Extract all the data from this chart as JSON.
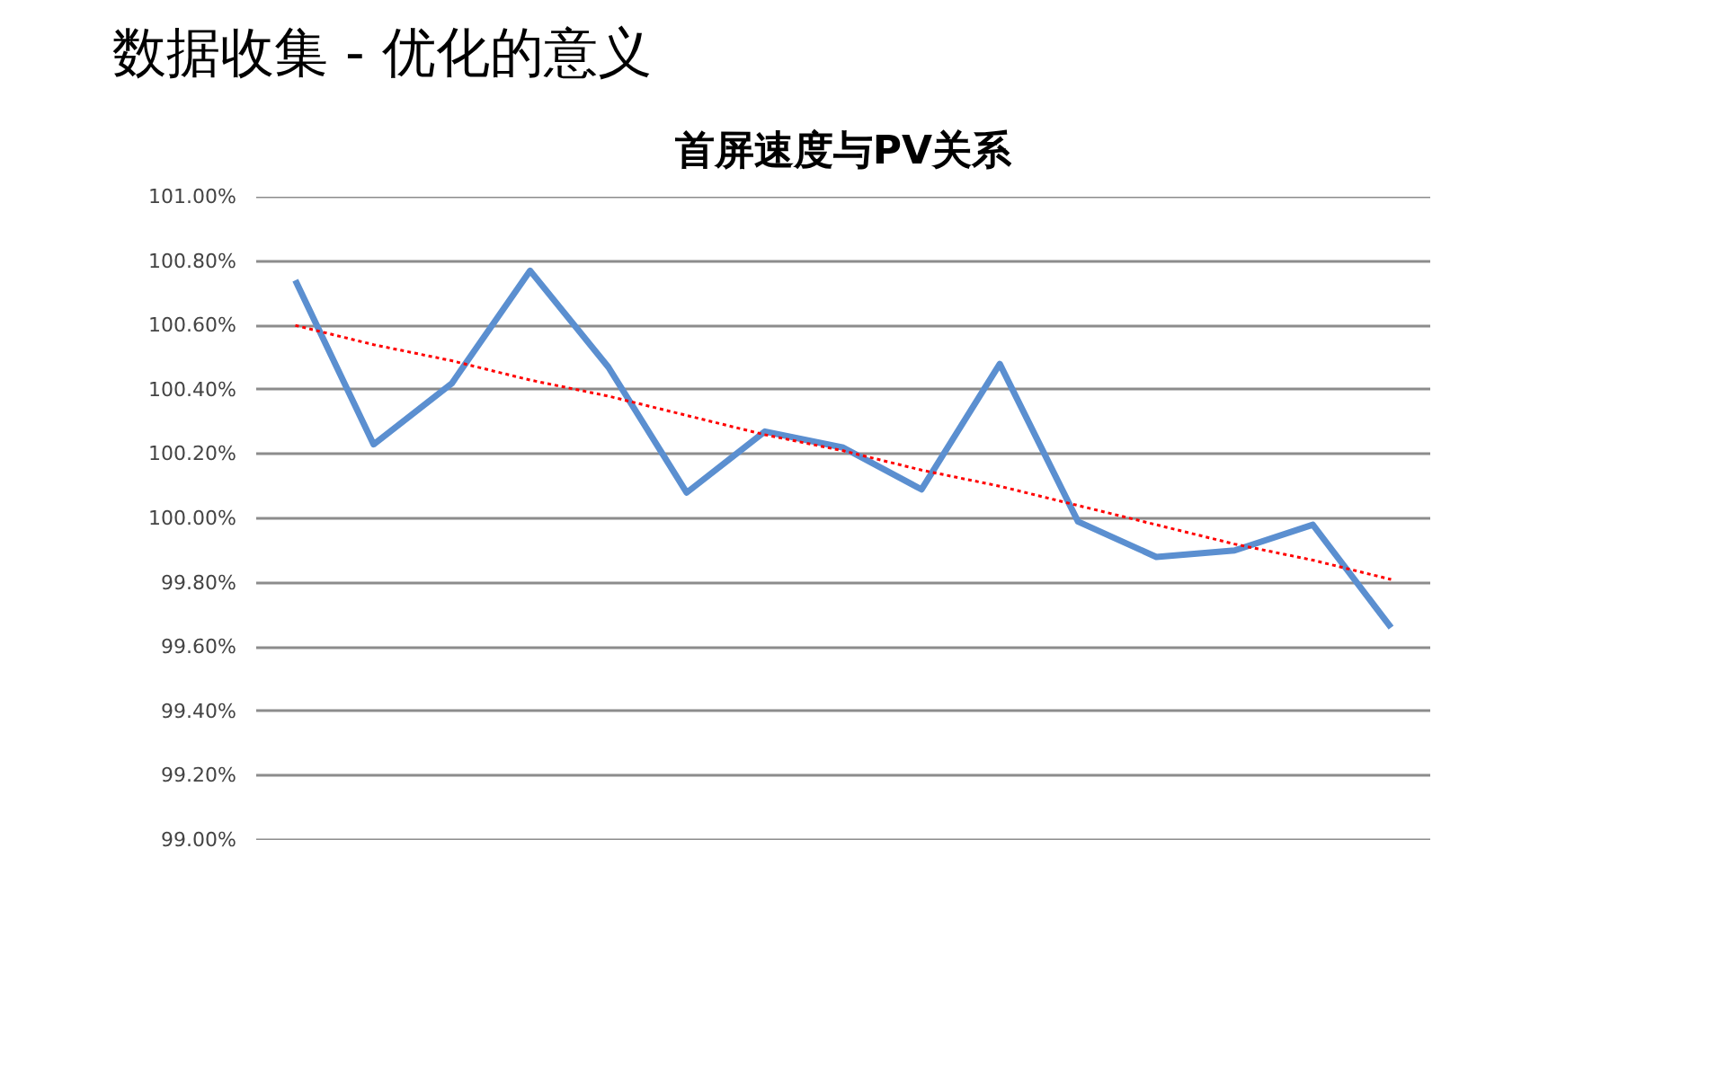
{
  "chart_data": {
    "type": "line",
    "title": "数据收集 - 优化的意义",
    "subtitle": "首屏速度与PV关系",
    "categories": [
      null,
      null,
      null,
      null,
      null,
      null,
      null,
      null,
      null,
      null,
      null,
      null,
      null,
      null,
      null
    ],
    "series": [
      {
        "color": "#5b8fd0",
        "values": [
          100.74,
          100.23,
          100.42,
          100.77,
          100.47,
          100.08,
          100.27,
          100.22,
          100.09,
          100.48,
          99.99,
          99.88,
          99.9,
          99.98,
          99.66
        ]
      },
      {
        "color": "#ff0000",
        "line_style": "dotted",
        "values": [
          100.6,
          100.54,
          100.49,
          100.43,
          100.38,
          100.32,
          100.26,
          100.21,
          100.15,
          100.1,
          100.04,
          99.98,
          99.92,
          99.87,
          99.81
        ]
      }
    ],
    "ylim": [
      99.0,
      101.0
    ],
    "yticks": [
      {
        "value": 99.0,
        "label": "99.00%"
      },
      {
        "value": 99.2,
        "label": "99.20%"
      },
      {
        "value": 99.4,
        "label": "99.40%"
      },
      {
        "value": 99.6,
        "label": "99.60%"
      },
      {
        "value": 99.8,
        "label": "99.80%"
      },
      {
        "value": 100.0,
        "label": "100.00%"
      },
      {
        "value": 100.2,
        "label": "100.20%"
      },
      {
        "value": 100.4,
        "label": "100.40%"
      },
      {
        "value": 100.6,
        "label": "100.60%"
      },
      {
        "value": 100.8,
        "label": "100.80%"
      },
      {
        "value": 101.0,
        "label": "101.00%"
      }
    ],
    "grid": "y",
    "marker": "none",
    "line_style": "solid",
    "tick_labels": "y"
  }
}
